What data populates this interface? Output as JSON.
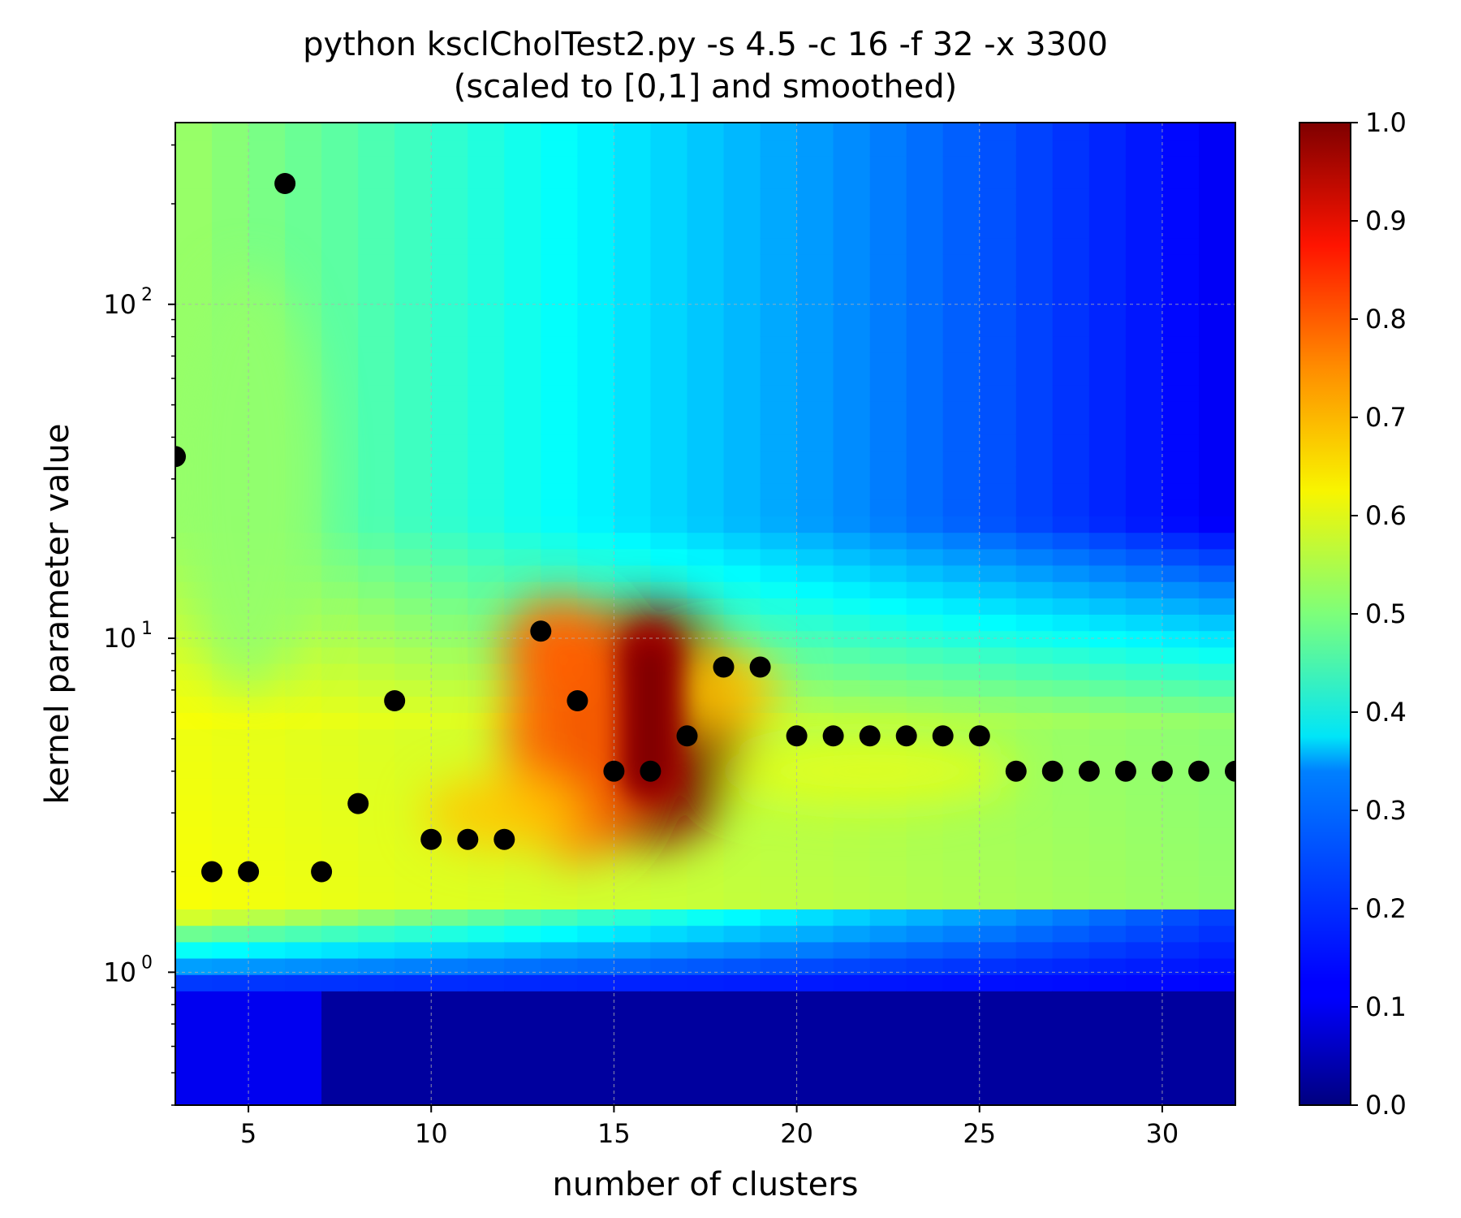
{
  "chart_data": {
    "type": "heatmap",
    "title": "python ksclCholTest2.py -s 4.5 -c 16 -f 32 -x 3300",
    "subtitle": "(scaled to [0,1] and smoothed)",
    "xlabel": "number of clusters",
    "ylabel": "kernel parameter value",
    "xlim": [
      3,
      32
    ],
    "ylim": [
      0.4,
      350
    ],
    "yscale": "log",
    "grid": true,
    "x_ticks": [
      5,
      10,
      15,
      20,
      25,
      30
    ],
    "y_ticks": [
      {
        "value": 1,
        "base": "10",
        "exp": "0"
      },
      {
        "value": 10,
        "base": "10",
        "exp": "1"
      },
      {
        "value": 100,
        "base": "10",
        "exp": "2"
      }
    ],
    "colorbar": {
      "range": [
        0,
        1
      ],
      "colormap": "jet",
      "ticks": [
        "0.0",
        "0.1",
        "0.2",
        "0.3",
        "0.4",
        "0.5",
        "0.6",
        "0.7",
        "0.8",
        "0.9",
        "1.0"
      ]
    },
    "heatmap_peaks": [
      {
        "x": 16,
        "y": 5.5,
        "value": 1.0
      },
      {
        "x": 14,
        "y": 5.0,
        "value": 0.78
      },
      {
        "x": 13.5,
        "y": 9.5,
        "value": 0.78
      },
      {
        "x": 12,
        "y": 3.0,
        "value": 0.68
      },
      {
        "x": 18,
        "y": 7.0,
        "value": 0.68
      },
      {
        "x": 22,
        "y": 4.0,
        "value": 0.6
      },
      {
        "x": 5,
        "y": 30,
        "value": 0.52
      }
    ],
    "series": [
      {
        "type": "scatter",
        "color": "#000000",
        "x": [
          3,
          4,
          5,
          6,
          7,
          8,
          9,
          10,
          11,
          12,
          13,
          14,
          15,
          16,
          17,
          18,
          19,
          20,
          21,
          22,
          23,
          24,
          25,
          26,
          27,
          28,
          29,
          30,
          31,
          32
        ],
        "y": [
          35,
          2,
          2,
          230,
          2,
          3.2,
          6.5,
          2.5,
          2.5,
          2.5,
          10.5,
          6.5,
          4,
          4,
          5.1,
          8.2,
          8.2,
          5.1,
          5.1,
          5.1,
          5.1,
          5.1,
          5.1,
          4,
          4,
          4,
          4,
          4,
          4,
          4
        ]
      }
    ]
  }
}
